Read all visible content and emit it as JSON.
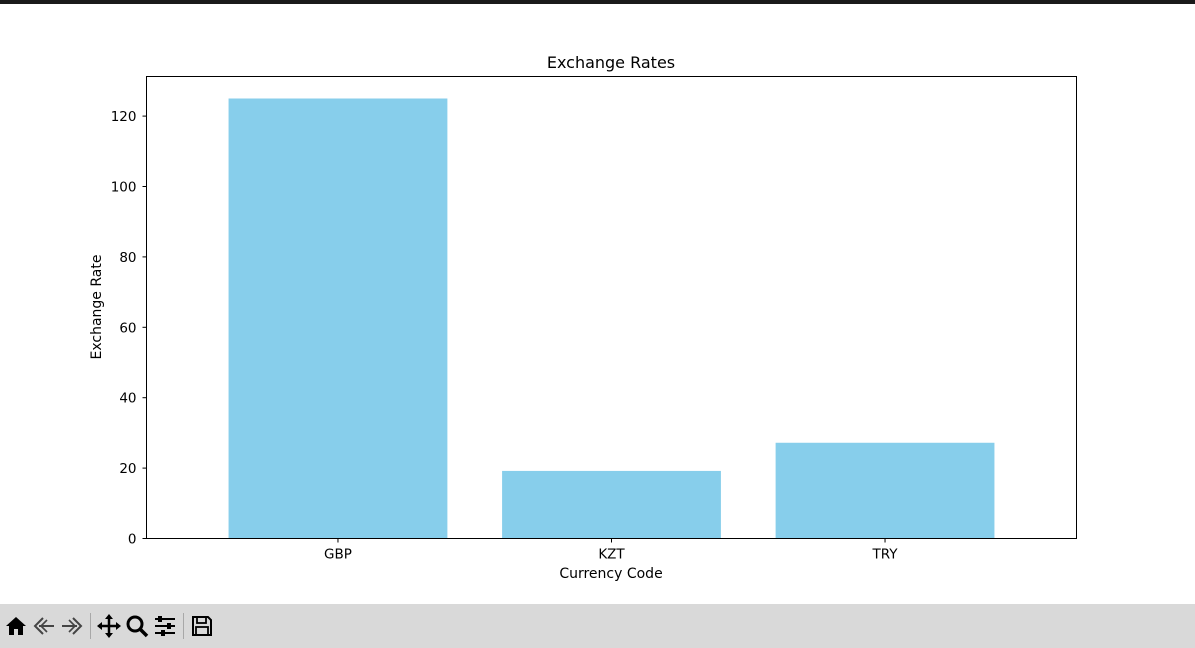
{
  "chart_data": {
    "type": "bar",
    "title": "Exchange Rates",
    "xlabel": "Currency Code",
    "ylabel": "Exchange Rate",
    "categories": [
      "GBP",
      "KZT",
      "TRY"
    ],
    "values": [
      125.0,
      19.2,
      27.2
    ],
    "ylim": [
      0,
      131.25
    ],
    "yticks": [
      0,
      20,
      40,
      60,
      80,
      100,
      120
    ],
    "bar_color": "#87CEEB",
    "grid": false
  },
  "toolbar": {
    "buttons": [
      {
        "name": "home-icon",
        "title": "Reset original view"
      },
      {
        "name": "back-icon",
        "title": "Back to previous view"
      },
      {
        "name": "forward-icon",
        "title": "Forward to next view"
      },
      {
        "name": "pan-icon",
        "title": "Pan axes"
      },
      {
        "name": "zoom-icon",
        "title": "Zoom to rectangle"
      },
      {
        "name": "configure-icon",
        "title": "Configure subplots"
      },
      {
        "name": "save-icon",
        "title": "Save the figure"
      }
    ]
  }
}
